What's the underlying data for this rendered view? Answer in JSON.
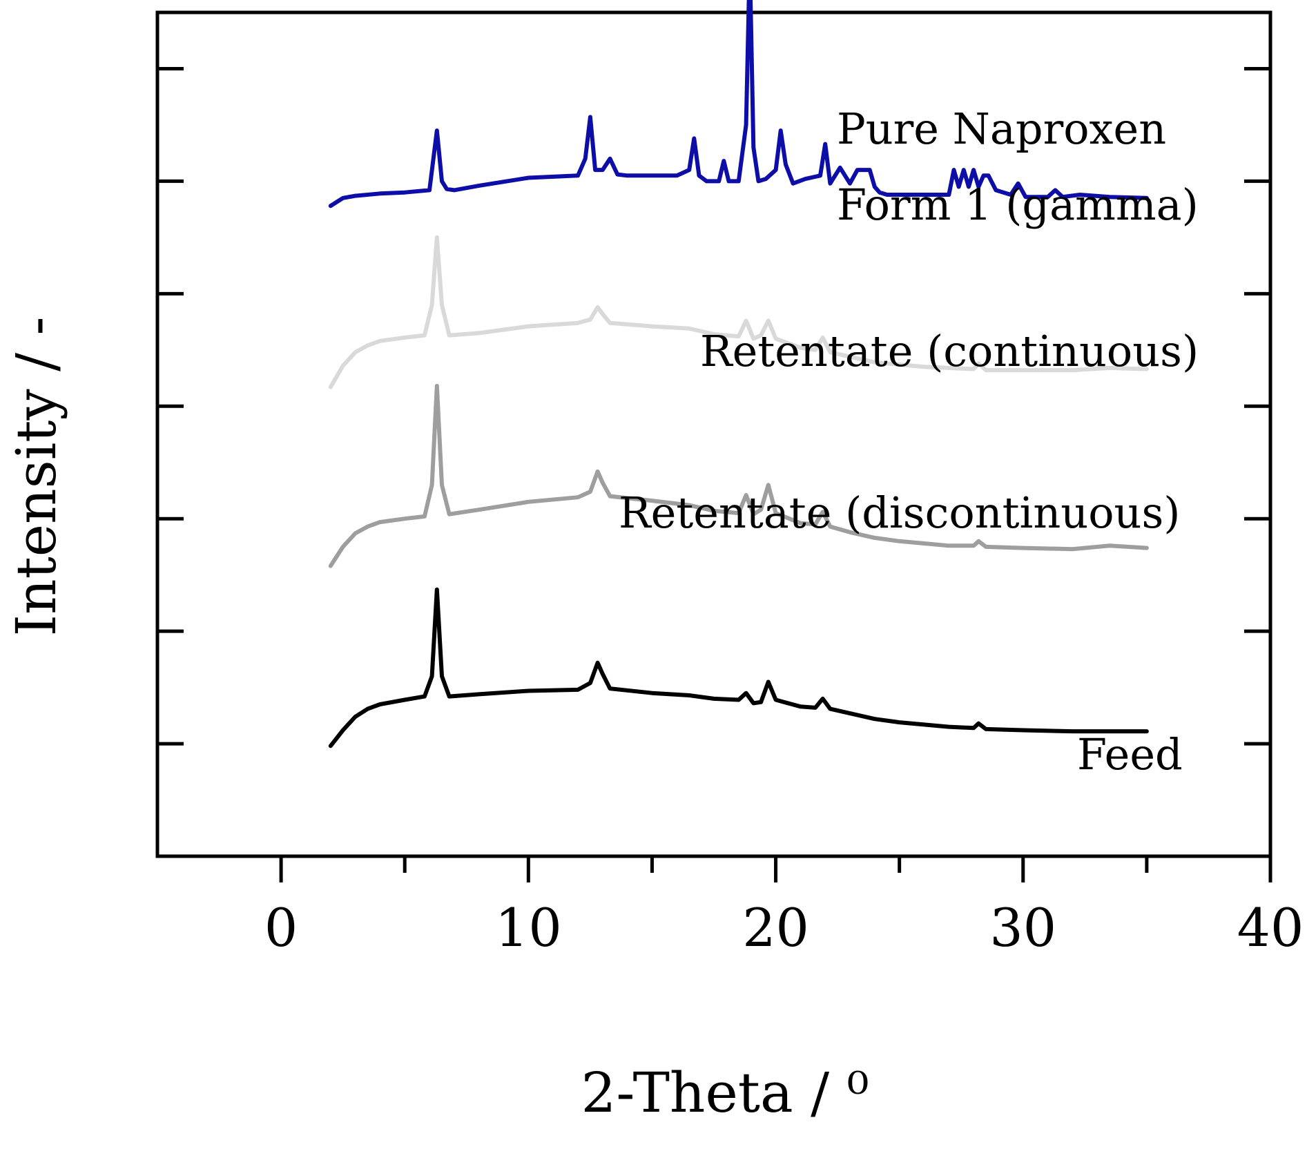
{
  "chart_data": {
    "type": "line",
    "xlabel": "2-Theta / ⁰",
    "ylabel": "Intensity / -",
    "xlim": [
      -5,
      40
    ],
    "ylim": [
      -1,
      6.5
    ],
    "xticks": [
      0,
      10,
      20,
      30,
      40
    ],
    "xtick_labels": [
      "0",
      "10",
      "20",
      "30",
      "40"
    ],
    "yticks": [
      0,
      1,
      2,
      3,
      4,
      5,
      6
    ],
    "ytick_labels_shown": false,
    "minor_xticks": [
      -5,
      5,
      15,
      25,
      35
    ],
    "grid": false,
    "series": [
      {
        "name": "Feed",
        "color": "#000000",
        "x": [
          2.0,
          2.5,
          3.0,
          3.5,
          4.0,
          5.0,
          5.8,
          6.1,
          6.3,
          6.5,
          6.8,
          8.0,
          10.0,
          12.0,
          12.5,
          12.8,
          13.0,
          13.3,
          15.0,
          16.5,
          17.5,
          18.5,
          18.8,
          19.1,
          19.4,
          19.7,
          20.0,
          21.0,
          21.6,
          21.9,
          22.2,
          23.0,
          24.0,
          25.0,
          26.0,
          27.0,
          28.0,
          28.2,
          28.5,
          30.0,
          32.0,
          35.0
        ],
        "y": [
          -0.02,
          0.12,
          0.24,
          0.31,
          0.35,
          0.39,
          0.42,
          0.6,
          1.37,
          0.6,
          0.42,
          0.44,
          0.47,
          0.48,
          0.54,
          0.72,
          0.62,
          0.49,
          0.45,
          0.43,
          0.4,
          0.39,
          0.45,
          0.36,
          0.37,
          0.55,
          0.39,
          0.33,
          0.32,
          0.4,
          0.31,
          0.27,
          0.22,
          0.19,
          0.17,
          0.15,
          0.14,
          0.18,
          0.13,
          0.12,
          0.11,
          0.11
        ]
      },
      {
        "name": "Retentate (discontinuous)",
        "color": "#9e9e9e",
        "x": [
          2.0,
          2.5,
          3.0,
          3.5,
          4.0,
          5.0,
          5.8,
          6.1,
          6.3,
          6.5,
          6.8,
          8.0,
          10.0,
          12.0,
          12.5,
          12.8,
          13.0,
          13.3,
          15.0,
          16.5,
          17.5,
          18.5,
          18.8,
          19.1,
          19.4,
          19.7,
          20.0,
          21.0,
          21.6,
          21.9,
          22.2,
          23.0,
          24.0,
          25.0,
          26.0,
          27.0,
          28.0,
          28.2,
          28.5,
          30.0,
          32.0,
          33.5,
          35.0
        ],
        "y": [
          1.58,
          1.75,
          1.87,
          1.93,
          1.97,
          2.0,
          2.02,
          2.3,
          3.18,
          2.3,
          2.04,
          2.08,
          2.15,
          2.19,
          2.24,
          2.42,
          2.32,
          2.2,
          2.16,
          2.12,
          2.07,
          2.05,
          2.21,
          2.04,
          2.08,
          2.3,
          2.05,
          1.96,
          1.95,
          2.06,
          1.93,
          1.88,
          1.83,
          1.8,
          1.78,
          1.76,
          1.76,
          1.8,
          1.75,
          1.74,
          1.73,
          1.76,
          1.74
        ]
      },
      {
        "name": "Retentate (continuous)",
        "color": "#d9d9d9",
        "x": [
          2.0,
          2.5,
          3.0,
          3.5,
          4.0,
          5.0,
          5.8,
          6.1,
          6.3,
          6.5,
          6.8,
          8.0,
          10.0,
          12.0,
          12.5,
          12.8,
          13.0,
          13.3,
          15.0,
          16.5,
          17.5,
          18.5,
          18.8,
          19.1,
          19.4,
          19.7,
          20.0,
          21.0,
          21.6,
          21.9,
          22.2,
          23.0,
          24.0,
          25.0,
          26.0,
          27.0,
          28.0,
          28.2,
          28.5,
          30.0,
          32.0,
          33.5,
          35.0
        ],
        "y": [
          3.17,
          3.36,
          3.48,
          3.54,
          3.58,
          3.61,
          3.63,
          3.9,
          4.5,
          3.9,
          3.63,
          3.65,
          3.71,
          3.74,
          3.77,
          3.88,
          3.82,
          3.74,
          3.71,
          3.69,
          3.64,
          3.62,
          3.76,
          3.6,
          3.63,
          3.76,
          3.6,
          3.52,
          3.5,
          3.61,
          3.48,
          3.44,
          3.39,
          3.37,
          3.35,
          3.34,
          3.33,
          3.38,
          3.32,
          3.32,
          3.32,
          3.34,
          3.33
        ]
      },
      {
        "name": "Pure Naproxen Form 1 (gamma)",
        "color": "#0d0da8",
        "x": [
          2.0,
          2.5,
          3.0,
          4.0,
          5.0,
          6.0,
          6.3,
          6.5,
          6.7,
          7.0,
          8.0,
          10.0,
          12.0,
          12.3,
          12.5,
          12.7,
          13.0,
          13.3,
          13.6,
          14.0,
          15.0,
          16.0,
          16.5,
          16.7,
          16.9,
          17.2,
          17.7,
          17.9,
          18.1,
          18.5,
          18.8,
          18.95,
          19.1,
          19.3,
          19.6,
          20.0,
          20.2,
          20.4,
          20.7,
          21.2,
          21.8,
          22.0,
          22.2,
          22.6,
          23.0,
          23.3,
          23.5,
          23.8,
          24.0,
          24.2,
          24.5,
          25.0,
          26.0,
          27.0,
          27.2,
          27.4,
          27.6,
          27.8,
          28.0,
          28.2,
          28.4,
          28.6,
          28.9,
          29.5,
          29.8,
          30.1,
          31.0,
          31.3,
          31.6,
          32.3,
          33.5,
          35.0
        ],
        "y": [
          4.78,
          4.85,
          4.87,
          4.89,
          4.9,
          4.92,
          5.45,
          5.0,
          4.93,
          4.92,
          4.96,
          5.03,
          5.05,
          5.2,
          5.57,
          5.1,
          5.1,
          5.2,
          5.06,
          5.05,
          5.05,
          5.05,
          5.1,
          5.38,
          5.05,
          5.0,
          5.0,
          5.18,
          5.0,
          5.0,
          5.5,
          6.96,
          5.3,
          5.0,
          5.02,
          5.1,
          5.45,
          5.15,
          4.98,
          5.02,
          5.05,
          5.33,
          4.98,
          5.12,
          4.98,
          5.1,
          5.1,
          5.1,
          4.95,
          4.9,
          4.88,
          4.88,
          4.88,
          4.88,
          5.1,
          4.95,
          5.1,
          4.95,
          5.1,
          4.95,
          5.05,
          5.05,
          4.92,
          4.88,
          4.98,
          4.86,
          4.86,
          4.92,
          4.86,
          4.88,
          4.86,
          4.85
        ]
      }
    ],
    "annotations": [
      {
        "text": "Pure Naproxen"
      },
      {
        "text": "Form 1 (gamma)"
      },
      {
        "text": "Retentate (continuous)"
      },
      {
        "text": "Retentate (discontinuous)"
      },
      {
        "text": "Feed"
      }
    ]
  }
}
